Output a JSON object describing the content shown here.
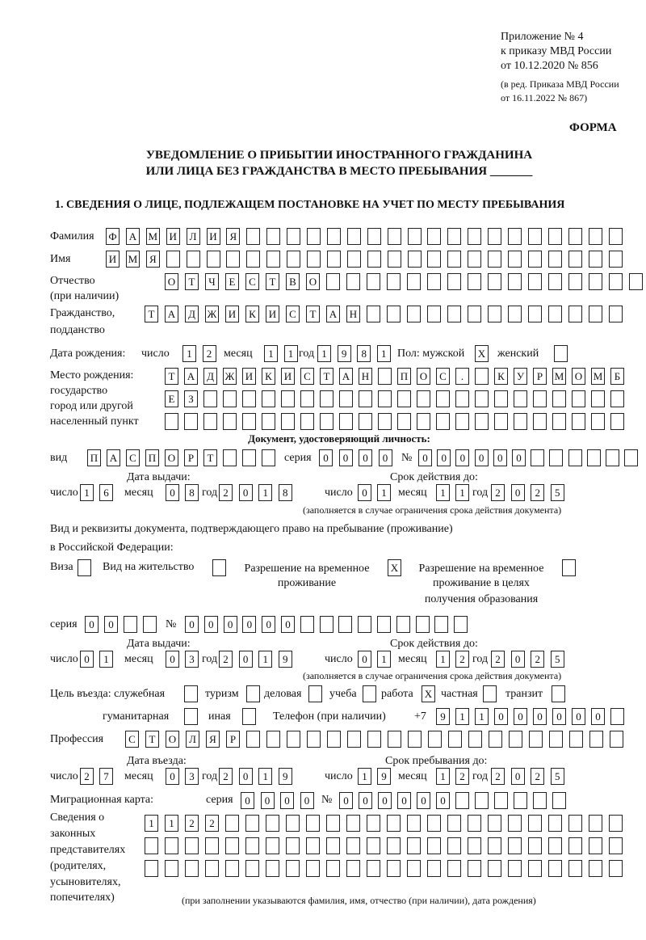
{
  "header": {
    "appendix": [
      "Приложение № 4",
      "к приказу МВД России",
      "от 10.12.2020 № 856"
    ],
    "revision": [
      "(в ред. Приказа МВД России",
      "от 16.11.2022 № 867)"
    ],
    "form_label": "ФОРМА",
    "title_line1": "УВЕДОМЛЕНИЕ О ПРИБЫТИИ ИНОСТРАННОГО ГРАЖДАНИНА",
    "title_line2": "ИЛИ ЛИЦА БЕЗ ГРАЖДАНСТВА В МЕСТО ПРЕБЫВАНИЯ _______",
    "section1": "1. СВЕДЕНИЯ О ЛИЦЕ, ПОДЛЕЖАЩЕМ ПОСТАНОВКЕ НА УЧЕТ ПО МЕСТУ ПРЕБЫВАНИЯ"
  },
  "labels": {
    "surname": "Фамилия",
    "name": "Имя",
    "patronymic": "Отчество",
    "patronymic2": "(при наличии)",
    "citizenship": "Гражданство,",
    "citizenship2": "подданство",
    "dob": "Дата рождения:",
    "day": "число",
    "month": "месяц",
    "year": "год",
    "sex": "Пол: мужской",
    "female": "женский",
    "birthplace": [
      "Место рождения:",
      "государство",
      "город или другой",
      "населенный пункт"
    ],
    "id_doc": "Документ, удостоверяющий личность:",
    "kind": "вид",
    "series": "серия",
    "number": "№",
    "issue_date": "Дата выдачи:",
    "valid_until": "Срок действия до:",
    "valid_note": "(заполняется в случае ограничения срока действия документа)",
    "stay_doc1": "Вид и реквизиты документа, подтверждающего право на пребывание (проживание)",
    "stay_doc2": "в Российской Федерации:",
    "visa": "Виза",
    "residence": "Вид на жительство",
    "trp": [
      "Разрешение на временное",
      "проживание"
    ],
    "trp_edu": [
      "Разрешение на временное",
      "проживание в целях",
      "получения образования"
    ],
    "purpose": "Цель въезда: служебная",
    "tourism": "туризм",
    "business": "деловая",
    "study": "учеба",
    "work": "работа",
    "private": "частная",
    "transit": "транзит",
    "humanitarian": "гуманитарная",
    "other": "иная",
    "phone": "Телефон (при наличии)",
    "phone_prefix": "+7",
    "profession": "Профессия",
    "entry_date": "Дата въезда:",
    "stay_until": "Срок пребывания до:",
    "migration_card": "Миграционная карта:",
    "representatives": [
      "Сведения о",
      "законных",
      "представителях",
      "(родителях,",
      "усыновителях,",
      "попечителях)"
    ],
    "rep_note": "(при заполнении указываются фамилия, имя, отчество (при наличии), дата рождения)"
  },
  "fields": {
    "surname": [
      "Ф",
      "А",
      "М",
      "И",
      "Л",
      "И",
      "Я",
      "",
      "",
      "",
      "",
      "",
      "",
      "",
      "",
      "",
      "",
      "",
      "",
      "",
      "",
      "",
      "",
      "",
      "",
      ""
    ],
    "name": [
      "И",
      "М",
      "Я",
      "",
      "",
      "",
      "",
      "",
      "",
      "",
      "",
      "",
      "",
      "",
      "",
      "",
      "",
      "",
      "",
      "",
      "",
      "",
      "",
      "",
      "",
      ""
    ],
    "patronymic": [
      "О",
      "Т",
      "Ч",
      "Е",
      "С",
      "Т",
      "В",
      "О",
      "",
      "",
      "",
      "",
      "",
      "",
      "",
      "",
      "",
      "",
      "",
      "",
      "",
      "",
      "",
      ""
    ],
    "citizenship": [
      "Т",
      "А",
      "Д",
      "Ж",
      "И",
      "К",
      "И",
      "С",
      "Т",
      "А",
      "Н",
      "",
      "",
      "",
      "",
      "",
      "",
      "",
      "",
      "",
      "",
      "",
      "",
      ""
    ],
    "dob_day": [
      "1",
      "2"
    ],
    "dob_month": [
      "1",
      "1"
    ],
    "dob_year": [
      "1",
      "9",
      "8",
      "1"
    ],
    "sex_male": "X",
    "sex_female": "",
    "birthplace_1": [
      "Т",
      "А",
      "Д",
      "Ж",
      "И",
      "К",
      "И",
      "С",
      "Т",
      "А",
      "Н",
      "",
      "П",
      "О",
      "С",
      ".",
      "",
      "К",
      "У",
      "Р",
      "М",
      "О",
      "М",
      "Б"
    ],
    "birthplace_2": [
      "Е",
      "З",
      "",
      "",
      "",
      "",
      "",
      "",
      "",
      "",
      "",
      "",
      "",
      "",
      "",
      "",
      "",
      "",
      "",
      "",
      "",
      "",
      "",
      ""
    ],
    "birthplace_3": [
      "",
      "",
      "",
      "",
      "",
      "",
      "",
      "",
      "",
      "",
      "",
      "",
      "",
      "",
      "",
      "",
      "",
      "",
      "",
      "",
      "",
      "",
      "",
      ""
    ],
    "id_kind": [
      "П",
      "А",
      "С",
      "П",
      "О",
      "Р",
      "Т",
      "",
      "",
      ""
    ],
    "id_series": [
      "0",
      "0",
      "0",
      "0"
    ],
    "id_number": [
      "0",
      "0",
      "0",
      "0",
      "0",
      "0",
      "",
      "",
      "",
      "",
      "",
      ""
    ],
    "id_issue_day": [
      "1",
      "6"
    ],
    "id_issue_month": [
      "0",
      "8"
    ],
    "id_issue_year": [
      "2",
      "0",
      "1",
      "8"
    ],
    "id_valid_day": [
      "0",
      "1"
    ],
    "id_valid_month": [
      "1",
      "1"
    ],
    "id_valid_year": [
      "2",
      "0",
      "2",
      "5"
    ],
    "visa": "",
    "residence": "",
    "trp": "X",
    "trp_edu": "",
    "stay_series": [
      "0",
      "0",
      "",
      ""
    ],
    "stay_number": [
      "0",
      "0",
      "0",
      "0",
      "0",
      "0",
      "",
      "",
      "",
      "",
      "",
      "",
      "",
      "",
      ""
    ],
    "stay_issue_day": [
      "0",
      "1"
    ],
    "stay_issue_month": [
      "0",
      "3"
    ],
    "stay_issue_year": [
      "2",
      "0",
      "1",
      "9"
    ],
    "stay_valid_day": [
      "0",
      "1"
    ],
    "stay_valid_month": [
      "1",
      "2"
    ],
    "stay_valid_year": [
      "2",
      "0",
      "2",
      "5"
    ],
    "purpose_official": "",
    "purpose_tourism": "",
    "purpose_business": "",
    "purpose_study": "",
    "purpose_work": "X",
    "purpose_private": "",
    "purpose_transit": "",
    "purpose_humanitarian": "",
    "purpose_other": "",
    "phone": [
      "9",
      "1",
      "1",
      "0",
      "0",
      "0",
      "0",
      "0",
      "0",
      ""
    ],
    "profession": [
      "С",
      "Т",
      "О",
      "Л",
      "Я",
      "Р",
      "",
      "",
      "",
      "",
      "",
      "",
      "",
      "",
      "",
      "",
      "",
      "",
      "",
      "",
      "",
      "",
      "",
      "",
      ""
    ],
    "entry_day": [
      "2",
      "7"
    ],
    "entry_month": [
      "0",
      "3"
    ],
    "entry_year": [
      "2",
      "0",
      "1",
      "9"
    ],
    "stay_until_day": [
      "1",
      "9"
    ],
    "stay_until_month": [
      "1",
      "2"
    ],
    "stay_until_year": [
      "2",
      "0",
      "2",
      "5"
    ],
    "mc_series": [
      "0",
      "0",
      "0",
      "0"
    ],
    "mc_number": [
      "0",
      "0",
      "0",
      "0",
      "0",
      "0",
      "",
      "",
      "",
      "",
      "",
      ""
    ],
    "rep_1": [
      "1",
      "1",
      "2",
      "2",
      "",
      "",
      "",
      "",
      "",
      "",
      "",
      "",
      "",
      "",
      "",
      "",
      "",
      "",
      "",
      "",
      "",
      "",
      "",
      ""
    ],
    "rep_2": [
      "",
      "",
      "",
      "",
      "",
      "",
      "",
      "",
      "",
      "",
      "",
      "",
      "",
      "",
      "",
      "",
      "",
      "",
      "",
      "",
      "",
      "",
      "",
      ""
    ],
    "rep_3": [
      "",
      "",
      "",
      "",
      "",
      "",
      "",
      "",
      "",
      "",
      "",
      "",
      "",
      "",
      "",
      "",
      "",
      "",
      "",
      "",
      "",
      "",
      "",
      ""
    ]
  }
}
